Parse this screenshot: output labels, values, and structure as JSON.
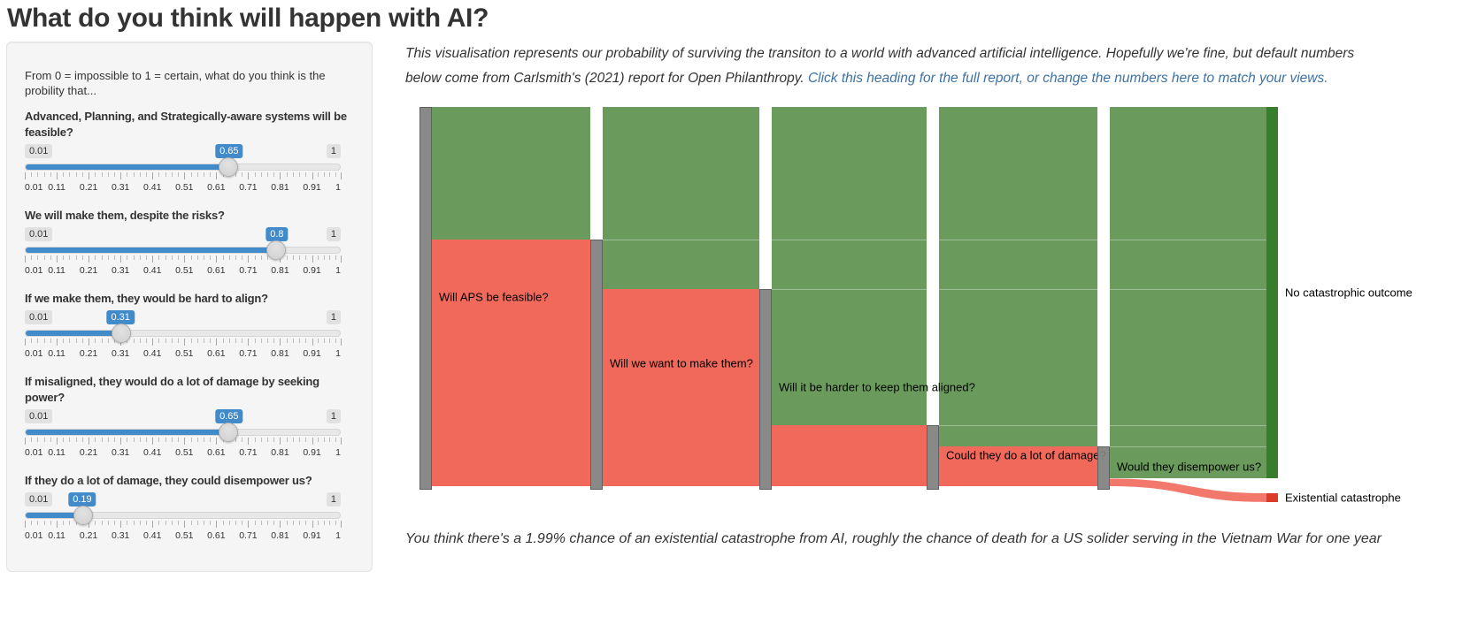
{
  "page": {
    "title": "What do you think will happen with AI?"
  },
  "sidebar": {
    "intro": "From 0 = impossible to 1 = certain, what do you think is the probility that...",
    "slider_scale": {
      "min": 0.01,
      "max": 1,
      "min_label": "0.01",
      "max_label": "1",
      "tick_labels": [
        "0.01",
        "0.11",
        "0.21",
        "0.31",
        "0.41",
        "0.51",
        "0.61",
        "0.71",
        "0.81",
        "0.91",
        "1"
      ]
    },
    "sliders": [
      {
        "label": "Advanced, Planning, and Strategically-aware systems will be feasible?",
        "value": 0.65,
        "value_label": "0.65"
      },
      {
        "label": "We will make them, despite the risks?",
        "value": 0.8,
        "value_label": "0.8"
      },
      {
        "label": "If we make them, they would be hard to align?",
        "value": 0.31,
        "value_label": "0.31"
      },
      {
        "label": "If misaligned, they would do a lot of damage by seeking power?",
        "value": 0.65,
        "value_label": "0.65"
      },
      {
        "label": "If they do a lot of damage, they could disempower us?",
        "value": 0.19,
        "value_label": "0.19"
      }
    ]
  },
  "main": {
    "intro_text": "This visualisation represents our probability of surviving the transiton to a world with advanced artificial intelligence. Hopefully we're fine, but default numbers below come from Carlsmith's (2021) report for Open Philanthropy. ",
    "intro_link": "Click this heading for the full report, or change the numbers here to match your views.",
    "result_note": "You think there's a 1.99% chance of an existential catastrophe from AI, roughly the chance of death for a US solider serving in the Vietnam War for one year"
  },
  "chart_data": {
    "type": "sankey",
    "stages": [
      {
        "question": "Will APS be feasible?",
        "p_yes": 0.65
      },
      {
        "question": "Will we want to make them?",
        "p_yes": 0.8
      },
      {
        "question": "Will it be harder to keep them aligned?",
        "p_yes": 0.31
      },
      {
        "question": "Could they do a lot of damage?",
        "p_yes": 0.65
      },
      {
        "question": "Would they disempower us?",
        "p_yes": 0.19
      }
    ],
    "outcomes": {
      "survive": {
        "label": "No catastrophic outcome",
        "value": 0.9801
      },
      "catastrophe": {
        "label": "Existential catastrophe",
        "value": 0.0199
      }
    },
    "colors": {
      "survive_flow": "#6b9b5c",
      "risk_flow": "#f0695b",
      "survive_node": "#377d2b",
      "catastrophe_node": "#dd3a27",
      "stage_node": "#808080",
      "link_blue": "#3d72a4",
      "slider_blue": "#428bca"
    }
  }
}
